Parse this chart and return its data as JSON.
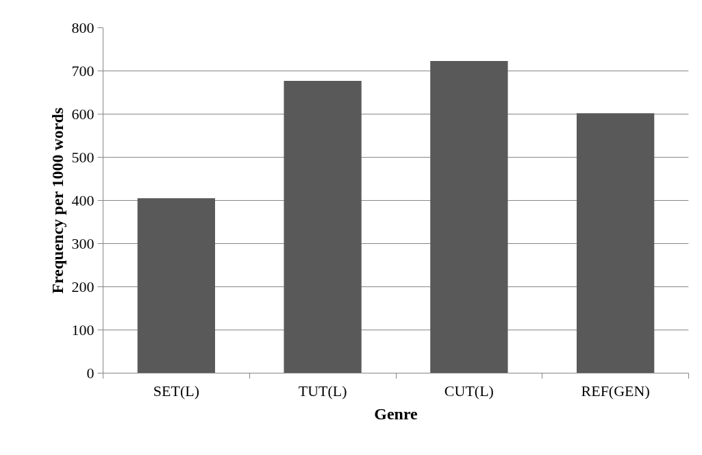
{
  "chart_data": {
    "type": "bar",
    "xlabel": "Genre",
    "ylabel": "Frequency per 1000 words",
    "categories": [
      "SET(L)",
      "TUT(L)",
      "CUT(L)",
      "REF(GEN)"
    ],
    "values": [
      405,
      677,
      723,
      602
    ],
    "color": "#595959",
    "ylim": [
      0,
      800
    ],
    "yticks": [
      0,
      100,
      200,
      300,
      400,
      500,
      600,
      700,
      800
    ],
    "grid": "y"
  }
}
